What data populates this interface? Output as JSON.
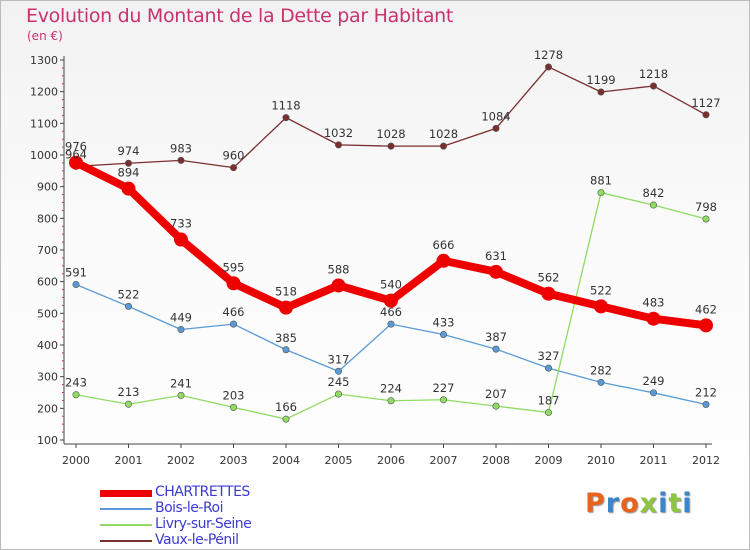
{
  "header": {
    "title": "Evolution du Montant de la Dette par Habitant",
    "unit": "(en €)"
  },
  "logo": {
    "text": "Proxiti",
    "colors": [
      "#e8641e",
      "#3a86c8",
      "#e8641e",
      "#8cc63f",
      "#3a86c8",
      "#8cc63f",
      "#3a86c8"
    ]
  },
  "chart_data": {
    "type": "line",
    "title": "Evolution du Montant de la Dette par Habitant",
    "subtitle": "(en €)",
    "xlabel": "",
    "ylabel": "",
    "categories": [
      "2000",
      "2001",
      "2002",
      "2003",
      "2004",
      "2005",
      "2006",
      "2007",
      "2008",
      "2009",
      "2010",
      "2011",
      "2012"
    ],
    "ylim": [
      100,
      1300
    ],
    "yticks": [
      100,
      200,
      300,
      400,
      500,
      600,
      700,
      800,
      900,
      1000,
      1100,
      1200,
      1300
    ],
    "grid": false,
    "legend_position": "bottom-left",
    "series": [
      {
        "name": "CHARTRETTES",
        "color": "#ee0000",
        "emphasis": true,
        "values": [
          976,
          894,
          733,
          595,
          518,
          588,
          540,
          666,
          631,
          562,
          522,
          483,
          462
        ]
      },
      {
        "name": "Bois-le-Roi",
        "color": "#5b9bd5",
        "emphasis": false,
        "values": [
          591,
          522,
          449,
          466,
          385,
          317,
          466,
          433,
          387,
          327,
          282,
          249,
          212
        ]
      },
      {
        "name": "Livry-sur-Seine",
        "color": "#8fdc62",
        "emphasis": false,
        "values": [
          243,
          213,
          241,
          203,
          166,
          245,
          224,
          227,
          207,
          187,
          881,
          842,
          798
        ]
      },
      {
        "name": "Vaux-le-Pénil",
        "color": "#7a2e2e",
        "emphasis": false,
        "values": [
          964,
          974,
          983,
          960,
          1118,
          1032,
          1028,
          1028,
          1084,
          1278,
          1199,
          1218,
          1127
        ]
      }
    ]
  }
}
